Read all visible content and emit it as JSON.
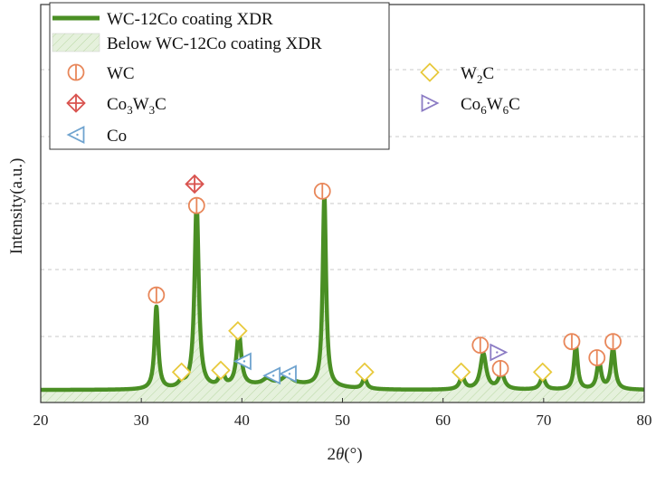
{
  "chart_data": {
    "type": "line",
    "xlabel": "2θ(°)",
    "xlabel_main": "2",
    "xlabel_var": "θ",
    "xlabel_unit": "(°)",
    "ylabel": "Intensity(a.u.)",
    "xlim": [
      20,
      80
    ],
    "ylim": [
      0,
      100
    ],
    "xticks": [
      20,
      30,
      40,
      50,
      60,
      70,
      80
    ],
    "grid": "horizontal-dashed",
    "legend_position": "top-left",
    "colors": {
      "line": "#4a8f24",
      "fill": "#dbeccf",
      "WC": "#e8875a",
      "Co3W3C": "#d9534f",
      "Co": "#6fa3cf",
      "W2C": "#e8c93c",
      "Co6W6C": "#8b7bc4"
    },
    "legend": [
      {
        "key": "line",
        "text": "WC-12Co coating XDR"
      },
      {
        "key": "fill",
        "text": "Below WC-12Co coating XDR"
      },
      {
        "key": "WC",
        "text": "WC"
      },
      {
        "key": "W2C",
        "text": "W",
        "sub": "2",
        "tail": "C"
      },
      {
        "key": "Co3W3C",
        "text": "Co",
        "sub": "3",
        "mid": "W",
        "sub2": "3",
        "tail": "C"
      },
      {
        "key": "Co6W6C",
        "text": "Co",
        "sub": "6",
        "mid": "W",
        "sub2": "6",
        "tail": "C"
      },
      {
        "key": "Co",
        "text": "Co"
      }
    ],
    "series": [
      {
        "baseline": 3.5,
        "peaks": [
          {
            "x": 31.5,
            "h": 23,
            "w": 0.22
          },
          {
            "x": 34.0,
            "h": 1.5,
            "w": 0.4
          },
          {
            "x": 35.5,
            "h": 52,
            "w": 0.25
          },
          {
            "x": 38.0,
            "h": 5,
            "w": 0.25
          },
          {
            "x": 39.7,
            "h": 15,
            "w": 0.28
          },
          {
            "x": 42.5,
            "h": 1.5,
            "w": 0.5
          },
          {
            "x": 44.5,
            "h": 2.2,
            "w": 0.6
          },
          {
            "x": 48.2,
            "h": 53.5,
            "w": 0.2
          },
          {
            "x": 52.2,
            "h": 3,
            "w": 0.25
          },
          {
            "x": 61.9,
            "h": 3.5,
            "w": 0.3
          },
          {
            "x": 64.0,
            "h": 10,
            "w": 0.35
          },
          {
            "x": 65.8,
            "h": 4.5,
            "w": 0.35
          },
          {
            "x": 69.9,
            "h": 3.5,
            "w": 0.3
          },
          {
            "x": 73.2,
            "h": 12.5,
            "w": 0.22
          },
          {
            "x": 75.5,
            "h": 8,
            "w": 0.25
          },
          {
            "x": 76.9,
            "h": 11.5,
            "w": 0.25
          }
        ]
      }
    ],
    "markers": [
      {
        "phase": "WC",
        "x": 31.5,
        "y": 30
      },
      {
        "phase": "Co3W3C",
        "x": 35.3,
        "y": 61
      },
      {
        "phase": "WC",
        "x": 35.5,
        "y": 55
      },
      {
        "phase": "WC",
        "x": 48.0,
        "y": 59
      },
      {
        "phase": "W2C",
        "x": 34.0,
        "y": 8.5
      },
      {
        "phase": "W2C",
        "x": 37.9,
        "y": 9
      },
      {
        "phase": "W2C",
        "x": 39.6,
        "y": 20
      },
      {
        "phase": "Co",
        "x": 40.1,
        "y": 11.5
      },
      {
        "phase": "Co",
        "x": 43.0,
        "y": 7.5
      },
      {
        "phase": "Co",
        "x": 44.6,
        "y": 8
      },
      {
        "phase": "W2C",
        "x": 52.2,
        "y": 8.5
      },
      {
        "phase": "W2C",
        "x": 61.8,
        "y": 8.5
      },
      {
        "phase": "WC",
        "x": 63.7,
        "y": 16
      },
      {
        "phase": "Co6W6C",
        "x": 65.5,
        "y": 14
      },
      {
        "phase": "WC",
        "x": 65.7,
        "y": 9.5
      },
      {
        "phase": "W2C",
        "x": 69.9,
        "y": 8.5
      },
      {
        "phase": "WC",
        "x": 72.8,
        "y": 17
      },
      {
        "phase": "WC",
        "x": 75.3,
        "y": 12.5
      },
      {
        "phase": "WC",
        "x": 76.9,
        "y": 17
      }
    ]
  }
}
